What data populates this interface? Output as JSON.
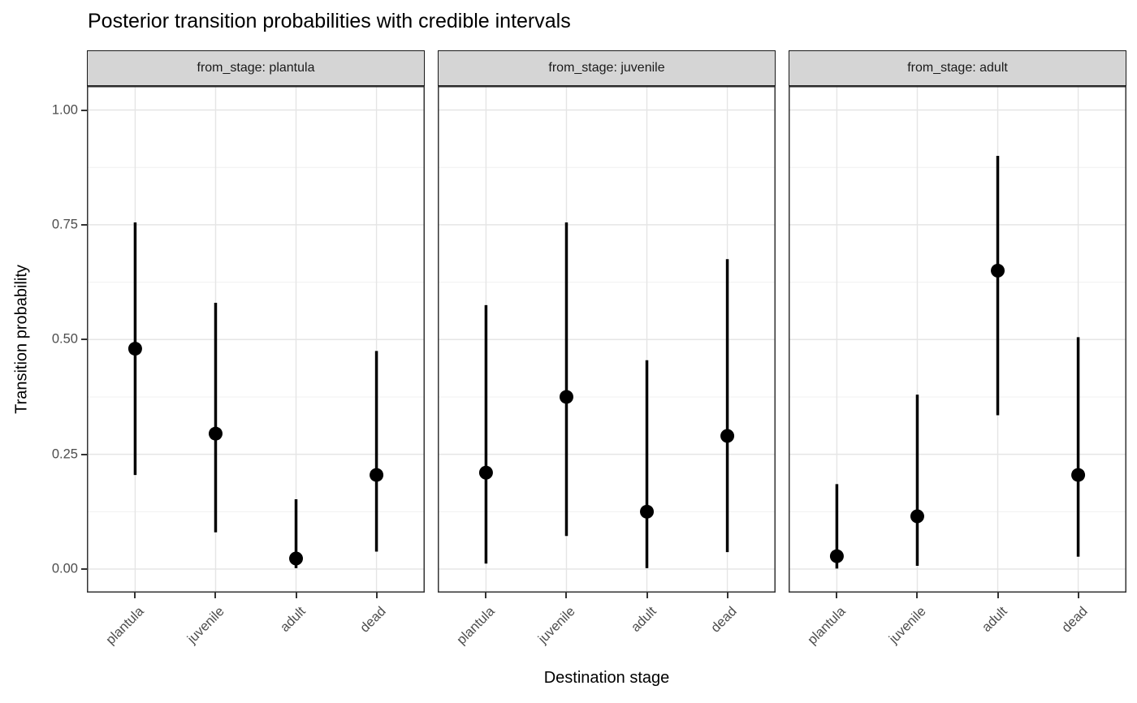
{
  "title": "Posterior transition probabilities with credible intervals",
  "chart_data": {
    "type": "pointrange",
    "title": "Posterior transition probabilities with credible intervals",
    "xlabel": "Destination stage",
    "ylabel": "Transition probability",
    "facet_variable": "from_stage",
    "categories": [
      "plantula",
      "juvenile",
      "adult",
      "dead"
    ],
    "ylim": [
      0,
      1
    ],
    "ytick_values": [
      1.0,
      0.75,
      0.5,
      0.25,
      0.0
    ],
    "ytick_labels": [
      "1.00",
      "0.75",
      "0.50",
      "0.25",
      "0.00"
    ],
    "grid": "major and minor horizontal gridlines, major vertical gridlines at categories",
    "legend": "none",
    "facets": [
      {
        "name": "plantula",
        "label": "from_stage: plantula",
        "points": [
          {
            "category": "plantula",
            "estimate": 0.48,
            "lower": 0.205,
            "upper": 0.755
          },
          {
            "category": "juvenile",
            "estimate": 0.295,
            "lower": 0.08,
            "upper": 0.58
          },
          {
            "category": "adult",
            "estimate": 0.023,
            "lower": 0.002,
            "upper": 0.152
          },
          {
            "category": "dead",
            "estimate": 0.205,
            "lower": 0.038,
            "upper": 0.475
          }
        ]
      },
      {
        "name": "juvenile",
        "label": "from_stage: juvenile",
        "points": [
          {
            "category": "plantula",
            "estimate": 0.21,
            "lower": 0.012,
            "upper": 0.575
          },
          {
            "category": "juvenile",
            "estimate": 0.375,
            "lower": 0.072,
            "upper": 0.755
          },
          {
            "category": "adult",
            "estimate": 0.125,
            "lower": 0.002,
            "upper": 0.455
          },
          {
            "category": "dead",
            "estimate": 0.29,
            "lower": 0.037,
            "upper": 0.675
          }
        ]
      },
      {
        "name": "adult",
        "label": "from_stage: adult",
        "points": [
          {
            "category": "plantula",
            "estimate": 0.028,
            "lower": 0.001,
            "upper": 0.185
          },
          {
            "category": "juvenile",
            "estimate": 0.115,
            "lower": 0.007,
            "upper": 0.38
          },
          {
            "category": "adult",
            "estimate": 0.65,
            "lower": 0.335,
            "upper": 0.9
          },
          {
            "category": "dead",
            "estimate": 0.205,
            "lower": 0.027,
            "upper": 0.505
          }
        ]
      }
    ],
    "colors": {
      "background": "#ffffff",
      "point": "#000000",
      "interval_line": "#000000",
      "strip_background": "#d5d5d5",
      "strip_border": "#1a1a1a",
      "panel_border": "#333333",
      "grid_major": "#e5e5e5",
      "grid_minor": "#f0f0f0",
      "tick_mark": "#333333",
      "tick_label": "#4d4d4d",
      "title_text": "#000000"
    }
  }
}
